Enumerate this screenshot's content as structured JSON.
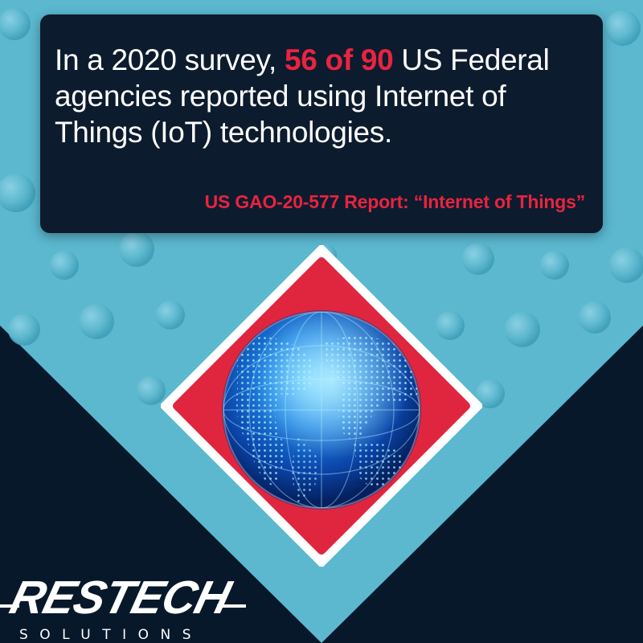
{
  "quote": {
    "lead": "In a 2020 survey, ",
    "highlight": "56 of 90",
    "rest": " US Federal agencies reported using Internet of Things (IoT) technologies.",
    "source": "US GAO-20-577 Report: “Internet of Things”"
  },
  "graphic": {
    "icon": "globe-icon",
    "diamond_color": "#e0253f",
    "globe_color": "#1e73d8"
  },
  "logo": {
    "word": "RESTECH",
    "sub": "SOLUTIONS"
  },
  "colors": {
    "accent": "#e8243f",
    "card": "#0d1b2e",
    "teal": "#5bb8cf",
    "navy": "#07182b"
  }
}
